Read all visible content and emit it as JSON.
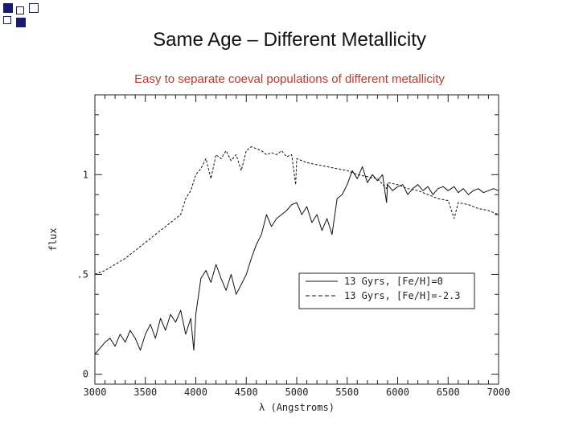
{
  "slide": {
    "title": "Same Age – Different Metallicity",
    "subtitle": "Easy to separate coeval populations of different metallicity",
    "accent_color": "#c0392b",
    "corner_color": "#1a1a6e"
  },
  "chart_data": {
    "type": "line",
    "title": "",
    "xlabel": "λ (Angstroms)",
    "ylabel": "flux",
    "xlim": [
      3000,
      7000
    ],
    "ylim": [
      -0.05,
      1.4
    ],
    "x_ticks": [
      3000,
      3500,
      4000,
      4500,
      5000,
      5500,
      6000,
      6500,
      7000
    ],
    "y_ticks": [
      0,
      0.5,
      1
    ],
    "y_tick_labels": [
      "0",
      ".5",
      "1"
    ],
    "legend_position": "center-right",
    "series": [
      {
        "name": "13 Gyrs, [Fe/H]=0",
        "legend_label": "13 Gyrs, [Fe/H]=0",
        "style": "solid",
        "x": [
          3000,
          3050,
          3100,
          3150,
          3200,
          3250,
          3300,
          3350,
          3400,
          3450,
          3500,
          3550,
          3600,
          3650,
          3700,
          3750,
          3800,
          3850,
          3900,
          3950,
          3980,
          4000,
          4050,
          4100,
          4150,
          4200,
          4250,
          4300,
          4350,
          4400,
          4450,
          4500,
          4550,
          4600,
          4650,
          4700,
          4750,
          4800,
          4850,
          4900,
          4950,
          5000,
          5050,
          5100,
          5150,
          5200,
          5250,
          5300,
          5350,
          5400,
          5450,
          5500,
          5550,
          5600,
          5650,
          5700,
          5750,
          5800,
          5850,
          5890,
          5900,
          5950,
          6000,
          6050,
          6100,
          6150,
          6200,
          6250,
          6300,
          6350,
          6400,
          6450,
          6500,
          6560,
          6600,
          6650,
          6700,
          6750,
          6800,
          6850,
          6900,
          6950,
          7000
        ],
        "values": [
          0.1,
          0.13,
          0.16,
          0.18,
          0.14,
          0.2,
          0.16,
          0.22,
          0.18,
          0.12,
          0.2,
          0.25,
          0.18,
          0.28,
          0.22,
          0.3,
          0.26,
          0.32,
          0.2,
          0.28,
          0.12,
          0.3,
          0.48,
          0.52,
          0.46,
          0.55,
          0.48,
          0.42,
          0.5,
          0.4,
          0.45,
          0.5,
          0.58,
          0.65,
          0.7,
          0.8,
          0.74,
          0.78,
          0.8,
          0.82,
          0.85,
          0.86,
          0.8,
          0.84,
          0.76,
          0.8,
          0.72,
          0.78,
          0.7,
          0.88,
          0.9,
          0.95,
          1.02,
          0.98,
          1.04,
          0.96,
          1.0,
          0.97,
          1.0,
          0.86,
          0.95,
          0.92,
          0.94,
          0.95,
          0.9,
          0.93,
          0.95,
          0.92,
          0.94,
          0.9,
          0.93,
          0.94,
          0.92,
          0.94,
          0.91,
          0.93,
          0.9,
          0.92,
          0.93,
          0.91,
          0.92,
          0.93,
          0.92
        ]
      },
      {
        "name": "13 Gyrs, [Fe/H]=-2.3",
        "legend_label": "13 Gyrs, [Fe/H]=-2.3",
        "style": "dashed",
        "x": [
          3000,
          3100,
          3200,
          3300,
          3400,
          3500,
          3600,
          3700,
          3800,
          3850,
          3900,
          3950,
          4000,
          4050,
          4100,
          4150,
          4200,
          4250,
          4300,
          4350,
          4400,
          4450,
          4500,
          4550,
          4600,
          4650,
          4700,
          4750,
          4800,
          4850,
          4900,
          4950,
          4990,
          5000,
          5050,
          5100,
          5200,
          5300,
          5400,
          5500,
          5600,
          5700,
          5800,
          5890,
          5900,
          6000,
          6100,
          6200,
          6300,
          6400,
          6500,
          6560,
          6600,
          6700,
          6800,
          6900,
          7000
        ],
        "values": [
          0.5,
          0.52,
          0.55,
          0.58,
          0.62,
          0.66,
          0.7,
          0.74,
          0.78,
          0.8,
          0.88,
          0.92,
          1.0,
          1.03,
          1.08,
          0.98,
          1.1,
          1.08,
          1.12,
          1.07,
          1.1,
          1.02,
          1.12,
          1.14,
          1.13,
          1.12,
          1.1,
          1.11,
          1.1,
          1.12,
          1.09,
          1.1,
          0.95,
          1.08,
          1.07,
          1.06,
          1.05,
          1.04,
          1.03,
          1.02,
          1.0,
          0.99,
          0.98,
          0.93,
          0.96,
          0.95,
          0.93,
          0.92,
          0.9,
          0.88,
          0.87,
          0.78,
          0.86,
          0.85,
          0.83,
          0.82,
          0.8
        ]
      }
    ]
  }
}
